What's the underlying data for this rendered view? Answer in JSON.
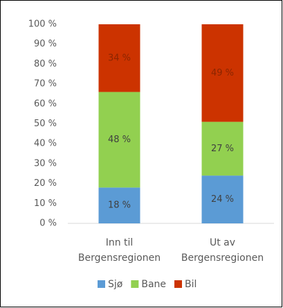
{
  "chart_data": {
    "type": "stacked_bar",
    "categories": [
      [
        "Inn til",
        "Bergensregionen"
      ],
      [
        "Ut av",
        "Bergensregionen"
      ]
    ],
    "series": [
      {
        "name": "Sjø",
        "color": "#5b9bd5",
        "values": [
          18,
          24
        ],
        "value_labels": [
          "18 %",
          "24 %"
        ]
      },
      {
        "name": "Bane",
        "color": "#92d050",
        "values": [
          48,
          27
        ],
        "value_labels": [
          "48 %",
          "27 %"
        ]
      },
      {
        "name": "Bil",
        "color": "#cc3300",
        "values": [
          34,
          49
        ],
        "value_labels": [
          "34 %",
          "49 %"
        ]
      }
    ],
    "ylim": [
      0,
      100
    ],
    "yticks": [
      {
        "value": 0,
        "label": "0 %"
      },
      {
        "value": 10,
        "label": "10 %"
      },
      {
        "value": 20,
        "label": "20 %"
      },
      {
        "value": 30,
        "label": "30 %"
      },
      {
        "value": 40,
        "label": "40 %"
      },
      {
        "value": 50,
        "label": "50 %"
      },
      {
        "value": 60,
        "label": "60 %"
      },
      {
        "value": 70,
        "label": "70 %"
      },
      {
        "value": 80,
        "label": "80 %"
      },
      {
        "value": 90,
        "label": "90 %"
      },
      {
        "value": 100,
        "label": "100 %"
      }
    ],
    "legend": "bottom"
  }
}
